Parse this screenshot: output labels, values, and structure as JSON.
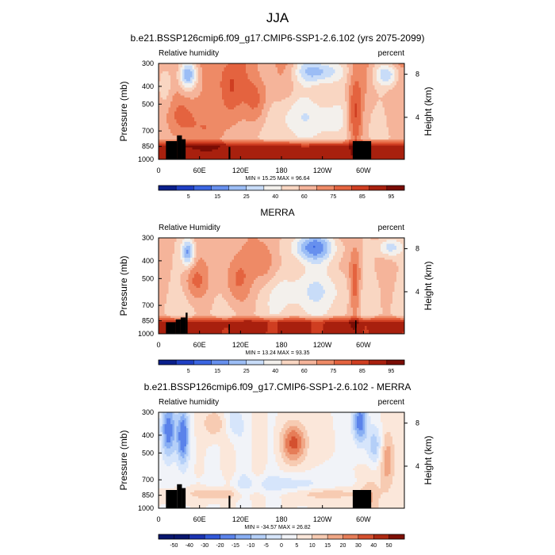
{
  "figure": {
    "title": "JJA",
    "colors": {
      "rh_scale": [
        "#0a1f8c",
        "#1f3fc4",
        "#3b66e2",
        "#6790ee",
        "#9bbdf5",
        "#c8dcf8",
        "#f3f0ec",
        "#f9d6c2",
        "#f5b49a",
        "#ee8a66",
        "#e4633f",
        "#cf3e21",
        "#a8200e",
        "#7a0c04"
      ],
      "diff_scale": [
        "#08166e",
        "#1a33b0",
        "#3158d8",
        "#5a82ea",
        "#88aef3",
        "#b4cff8",
        "#d6e5fb",
        "#f1f3f8",
        "#fbe7da",
        "#f7cbb2",
        "#f0a685",
        "#e67d58",
        "#d4502f",
        "#ae2a12",
        "#7e0f05"
      ],
      "land": "#000000"
    }
  },
  "chart_data": [
    {
      "type": "heatmap",
      "title": "b.e21.BSSP126cmip6.f09_g17.CMIP6-SSP1-2.6.102 (yrs 2075-2099)",
      "left_label": "Relative humidity",
      "right_label": "percent",
      "xlabel": "",
      "ylabel": "Pressure (mb)",
      "y2label": "Height (km)",
      "x_ticks": [
        "0",
        "60E",
        "120E",
        "180",
        "120W",
        "60W"
      ],
      "y_ticks": [
        "300",
        "400",
        "500",
        "700",
        "850",
        "1000"
      ],
      "y2_ticks": [
        "8",
        "4"
      ],
      "stats": "MIN = 15.25  MAX = 96.64",
      "min": 15.25,
      "max": 96.64,
      "colorbar_labels": [
        "5",
        "15",
        "25",
        "40",
        "60",
        "75",
        "85",
        "95"
      ]
    },
    {
      "type": "heatmap",
      "title": "MERRA",
      "left_label": "Relative Humidity",
      "right_label": "percent",
      "xlabel": "",
      "ylabel": "Pressure (mb)",
      "y2label": "Height (km)",
      "x_ticks": [
        "0",
        "60E",
        "120E",
        "180",
        "120W",
        "60W"
      ],
      "y_ticks": [
        "300",
        "400",
        "500",
        "700",
        "850",
        "1000"
      ],
      "y2_ticks": [
        "8",
        "4"
      ],
      "stats": "MIN = 13.24  MAX = 93.35",
      "min": 13.24,
      "max": 93.35,
      "colorbar_labels": [
        "5",
        "15",
        "25",
        "40",
        "60",
        "75",
        "85",
        "95"
      ]
    },
    {
      "type": "heatmap",
      "title": "b.e21.BSSP126cmip6.f09_g17.CMIP6-SSP1-2.6.102 - MERRA",
      "left_label": "Relative humidity",
      "right_label": "percent",
      "xlabel": "",
      "ylabel": "Pressure (mb)",
      "y2label": "Height (km)",
      "x_ticks": [
        "0",
        "60E",
        "120E",
        "180",
        "120W",
        "60W"
      ],
      "y_ticks": [
        "300",
        "400",
        "500",
        "700",
        "850",
        "1000"
      ],
      "y2_ticks": [
        "8",
        "4"
      ],
      "stats": "MIN = -34.57  MAX = 26.82",
      "min": -34.57,
      "max": 26.82,
      "colorbar_labels": [
        "-50",
        "-40",
        "-30",
        "-20",
        "-15",
        "-10",
        "-5",
        "0",
        "5",
        "10",
        "15",
        "20",
        "30",
        "40",
        "50"
      ]
    }
  ]
}
